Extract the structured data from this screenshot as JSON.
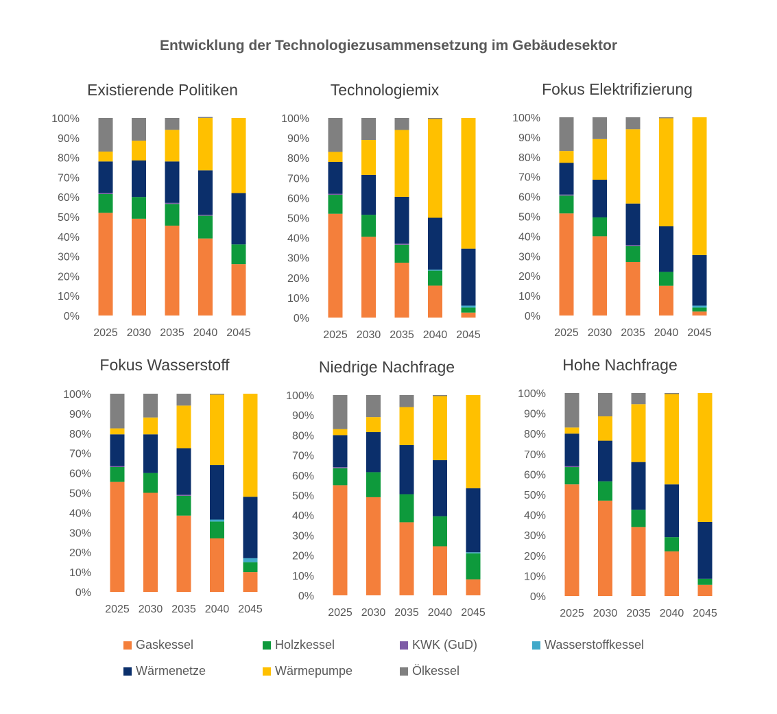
{
  "title": "Entwicklung der Technologiezusammensetzung im Gebäudesektor",
  "series_meta": [
    {
      "name": "Gaskessel",
      "color": "#F47F3B"
    },
    {
      "name": "Holzkessel",
      "color": "#0E9A3C"
    },
    {
      "name": "KWK (GuD)",
      "color": "#7E5CA7"
    },
    {
      "name": "Wasserstoffkessel",
      "color": "#41A9C9"
    },
    {
      "name": "Wärmenetze",
      "color": "#0B2F6B"
    },
    {
      "name": "Wärmepumpe",
      "color": "#FFC000"
    },
    {
      "name": "Ölkessel",
      "color": "#808080"
    }
  ],
  "chart_data": [
    {
      "type": "bar",
      "stacked": true,
      "title": "Existierende Politiken",
      "categories": [
        "2025",
        "2030",
        "2035",
        "2040",
        "2045"
      ],
      "yticks": [
        "0%",
        "10%",
        "20%",
        "30%",
        "40%",
        "50%",
        "60%",
        "70%",
        "80%",
        "90%",
        "100%"
      ],
      "ylim": [
        0,
        100
      ],
      "series": [
        {
          "name": "Gaskessel",
          "values": [
            52,
            49,
            45.5,
            39,
            26
          ]
        },
        {
          "name": "Holzkessel",
          "values": [
            9.5,
            11,
            11,
            11.5,
            10
          ]
        },
        {
          "name": "KWK (GuD)",
          "values": [
            0.5,
            0,
            0.5,
            0.5,
            0
          ]
        },
        {
          "name": "Wasserstoffkessel",
          "values": [
            0,
            0,
            0,
            0,
            0
          ]
        },
        {
          "name": "Wärmenetze",
          "values": [
            16,
            18.5,
            21,
            22.5,
            26
          ]
        },
        {
          "name": "Wärmepumpe",
          "values": [
            5,
            10,
            16,
            26.5,
            38
          ]
        },
        {
          "name": "Ölkessel",
          "values": [
            17,
            11.5,
            6,
            0.5,
            0
          ]
        }
      ]
    },
    {
      "type": "bar",
      "stacked": true,
      "title": "Technologiemix",
      "categories": [
        "2025",
        "2030",
        "2035",
        "2040",
        "2045"
      ],
      "yticks": [
        "0%",
        "10%",
        "20%",
        "30%",
        "40%",
        "50%",
        "60%",
        "70%",
        "80%",
        "90%",
        "100%"
      ],
      "ylim": [
        0,
        100
      ],
      "series": [
        {
          "name": "Gaskessel",
          "values": [
            52,
            40.5,
            27.5,
            16,
            2.5
          ]
        },
        {
          "name": "Holzkessel",
          "values": [
            9.5,
            11,
            9,
            7.5,
            2.5
          ]
        },
        {
          "name": "KWK (GuD)",
          "values": [
            0.5,
            0,
            0.5,
            0,
            0
          ]
        },
        {
          "name": "Wasserstoffkessel",
          "values": [
            0,
            0,
            0,
            0.5,
            1
          ]
        },
        {
          "name": "Wärmenetze",
          "values": [
            16,
            20,
            23.5,
            26,
            28.5
          ]
        },
        {
          "name": "Wärmepumpe",
          "values": [
            5,
            17.5,
            33.5,
            49.5,
            65.5
          ]
        },
        {
          "name": "Ölkessel",
          "values": [
            17,
            11,
            6,
            0.5,
            0
          ]
        }
      ]
    },
    {
      "type": "bar",
      "stacked": true,
      "title": "Fokus Elektrifizierung",
      "categories": [
        "2025",
        "2030",
        "2035",
        "2040",
        "2045"
      ],
      "yticks": [
        "0%",
        "10%",
        "20%",
        "30%",
        "40%",
        "50%",
        "60%",
        "70%",
        "80%",
        "90%",
        "100%"
      ],
      "ylim": [
        0,
        100
      ],
      "series": [
        {
          "name": "Gaskessel",
          "values": [
            51.5,
            40,
            27,
            15,
            2
          ]
        },
        {
          "name": "Holzkessel",
          "values": [
            9,
            9.5,
            8,
            7,
            2
          ]
        },
        {
          "name": "KWK (GuD)",
          "values": [
            0.5,
            0,
            0.5,
            0,
            0
          ]
        },
        {
          "name": "Wasserstoffkessel",
          "values": [
            0,
            0,
            0,
            0,
            1
          ]
        },
        {
          "name": "Wärmenetze",
          "values": [
            16,
            19,
            21,
            23,
            25.5
          ]
        },
        {
          "name": "Wärmepumpe",
          "values": [
            6,
            20.5,
            37.5,
            54.5,
            69.5
          ]
        },
        {
          "name": "Ölkessel",
          "values": [
            17,
            11,
            6,
            0.5,
            0
          ]
        }
      ]
    },
    {
      "type": "bar",
      "stacked": true,
      "title": "Fokus Wasserstoff",
      "categories": [
        "2025",
        "2030",
        "2035",
        "2040",
        "2045"
      ],
      "yticks": [
        "0%",
        "10%",
        "20%",
        "30%",
        "40%",
        "50%",
        "60%",
        "70%",
        "80%",
        "90%",
        "100%"
      ],
      "ylim": [
        0,
        100
      ],
      "series": [
        {
          "name": "Gaskessel",
          "values": [
            55.5,
            50,
            38.5,
            27,
            10
          ]
        },
        {
          "name": "Holzkessel",
          "values": [
            7.5,
            10,
            10,
            8.5,
            5
          ]
        },
        {
          "name": "KWK (GuD)",
          "values": [
            0.5,
            0,
            0.5,
            0,
            0
          ]
        },
        {
          "name": "Wasserstoffkessel",
          "values": [
            0,
            0,
            0,
            1,
            2
          ]
        },
        {
          "name": "Wärmenetze",
          "values": [
            16,
            19.5,
            23.5,
            27.5,
            31
          ]
        },
        {
          "name": "Wärmepumpe",
          "values": [
            3,
            8.5,
            21.5,
            35.5,
            52
          ]
        },
        {
          "name": "Ölkessel",
          "values": [
            17.5,
            12,
            6,
            0.5,
            0
          ]
        }
      ]
    },
    {
      "type": "bar",
      "stacked": true,
      "title": "Niedrige Nachfrage",
      "categories": [
        "2025",
        "2030",
        "2035",
        "2040",
        "2045"
      ],
      "yticks": [
        "0%",
        "10%",
        "20%",
        "30%",
        "40%",
        "50%",
        "60%",
        "70%",
        "80%",
        "90%",
        "100%"
      ],
      "ylim": [
        0,
        100
      ],
      "series": [
        {
          "name": "Gaskessel",
          "values": [
            55,
            49,
            36.5,
            24.5,
            8
          ]
        },
        {
          "name": "Holzkessel",
          "values": [
            8.5,
            12.5,
            14,
            15,
            13
          ]
        },
        {
          "name": "KWK (GuD)",
          "values": [
            0.5,
            0,
            0,
            0,
            0
          ]
        },
        {
          "name": "Wasserstoffkessel",
          "values": [
            0,
            0,
            0,
            0,
            0.5
          ]
        },
        {
          "name": "Wärmenetze",
          "values": [
            16,
            20,
            24.5,
            28,
            32
          ]
        },
        {
          "name": "Wärmepumpe",
          "values": [
            3,
            7.5,
            19,
            32,
            46.5
          ]
        },
        {
          "name": "Ölkessel",
          "values": [
            17,
            11,
            6,
            0.5,
            0
          ]
        }
      ]
    },
    {
      "type": "bar",
      "stacked": true,
      "title": "Hohe Nachfrage",
      "categories": [
        "2025",
        "2030",
        "2035",
        "2040",
        "2045"
      ],
      "yticks": [
        "0%",
        "10%",
        "20%",
        "30%",
        "40%",
        "50%",
        "60%",
        "70%",
        "80%",
        "90%",
        "100%"
      ],
      "ylim": [
        0,
        100
      ],
      "series": [
        {
          "name": "Gaskessel",
          "values": [
            55,
            47,
            34,
            22,
            5.5
          ]
        },
        {
          "name": "Holzkessel",
          "values": [
            8.5,
            9.5,
            8.5,
            7,
            3
          ]
        },
        {
          "name": "KWK (GuD)",
          "values": [
            0.5,
            0,
            0,
            0,
            0
          ]
        },
        {
          "name": "Wasserstoffkessel",
          "values": [
            0,
            0,
            0,
            0,
            0
          ]
        },
        {
          "name": "Wärmenetze",
          "values": [
            16,
            20,
            23.5,
            26,
            28
          ]
        },
        {
          "name": "Wärmepumpe",
          "values": [
            3,
            12,
            28.5,
            44.5,
            63.5
          ]
        },
        {
          "name": "Ölkessel",
          "values": [
            17,
            11.5,
            5.5,
            0.5,
            0
          ]
        }
      ]
    }
  ]
}
